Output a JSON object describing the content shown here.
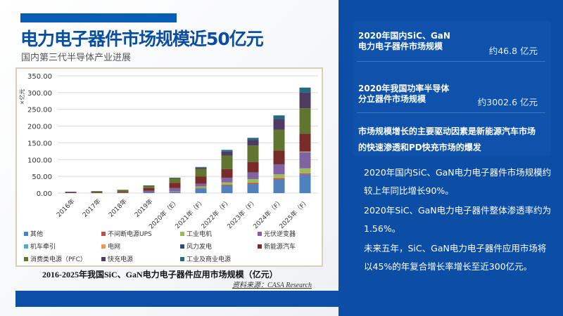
{
  "header": {
    "title": "电力电子器件市场规模近50亿元",
    "subtitle": "国内第三代半导体产业进展"
  },
  "chart_caption": "2016-2025年我国SiC、GaN电力电子器件应用市场规模（亿元）",
  "chart_source": "资料来源：CASA Research",
  "right_panel": {
    "stat1": {
      "label_line1": "2020年国内SiC、GaN",
      "label_line2": "电力电子器件市场规模",
      "value": "约46.8 亿元"
    },
    "stat2": {
      "label_line1": "2020年我国功率半导体",
      "label_line2": "分立器件市场规模",
      "value": "约3002.6 亿元"
    },
    "driver": "市场规模增长的主要驱动因素是新能源汽车市场的快速渗透和PD快充市场的爆发",
    "points": [
      "2020年国内SiC、GaN电力电子器件市场规模约较上年同比增长90%。",
      "2020年SiC、GaN电力电子器件整体渗透率约为1.56%。",
      "未来五年，SiC、GaN电力电子器件应用市场将以45%的年复合增长率增长至近300亿元。"
    ]
  },
  "colors": {
    "panel": "#0c4ea6",
    "title": "#0a4ea0"
  },
  "chart_data": {
    "type": "bar",
    "stacked": true,
    "ylabel": "×亿元",
    "ylim": [
      0,
      350
    ],
    "yticks": [
      "0.00",
      "50.00",
      "100.00",
      "150.00",
      "200.00",
      "250.00",
      "300.00",
      "350.00"
    ],
    "grid": true,
    "legend_position": "bottom",
    "categories": [
      "2016年",
      "2017年",
      "2018年",
      "2019年",
      "2020年（E）",
      "2021年（F）",
      "2022年（F）",
      "2023年（F）",
      "2024年（F）",
      "2025年（F）"
    ],
    "series": [
      {
        "name": "其他",
        "color": "#4f81bd",
        "values": [
          0,
          0,
          0,
          2,
          3,
          14,
          22,
          27,
          40,
          55
        ]
      },
      {
        "name": "不间断电源UPS",
        "color": "#c0504d",
        "values": [
          0,
          0,
          0,
          0,
          1,
          2,
          3,
          4,
          4,
          4
        ]
      },
      {
        "name": "工业电机",
        "color": "#9bbb59",
        "values": [
          0,
          0,
          0,
          0,
          1,
          4,
          7,
          11,
          12,
          15
        ]
      },
      {
        "name": "光伏逆变器",
        "color": "#8064a2",
        "values": [
          0,
          0,
          2,
          5,
          10,
          8,
          14,
          20,
          30,
          48
        ]
      },
      {
        "name": "机车牵引",
        "color": "#4bacc6",
        "values": [
          0,
          0,
          0,
          0,
          0,
          0,
          0,
          0,
          0,
          1
        ]
      },
      {
        "name": "电网",
        "color": "#f79646",
        "values": [
          0,
          0,
          0,
          0,
          0,
          0,
          0,
          0,
          0,
          1
        ]
      },
      {
        "name": "风力发电",
        "color": "#2c4d75",
        "values": [
          0,
          0,
          0,
          0,
          0,
          0,
          0,
          0,
          1,
          0
        ]
      },
      {
        "name": "新能源汽车",
        "color": "#772c2a",
        "values": [
          1,
          1,
          2,
          8,
          16,
          22,
          26,
          31,
          40,
          53
        ]
      },
      {
        "name": "消费类电源（PFC）",
        "color": "#5f7530",
        "values": [
          1,
          4,
          6,
          7,
          13,
          22,
          40,
          49,
          62,
          76
        ]
      },
      {
        "name": "快充电源",
        "color": "#4d3b62",
        "values": [
          2,
          1,
          0,
          0,
          1,
          4,
          12,
          17,
          32,
          47
        ]
      },
      {
        "name": "工业及商业电源",
        "color": "#276a7c",
        "values": [
          0,
          0,
          0,
          1,
          1,
          2,
          5,
          6,
          11,
          15
        ]
      }
    ]
  }
}
